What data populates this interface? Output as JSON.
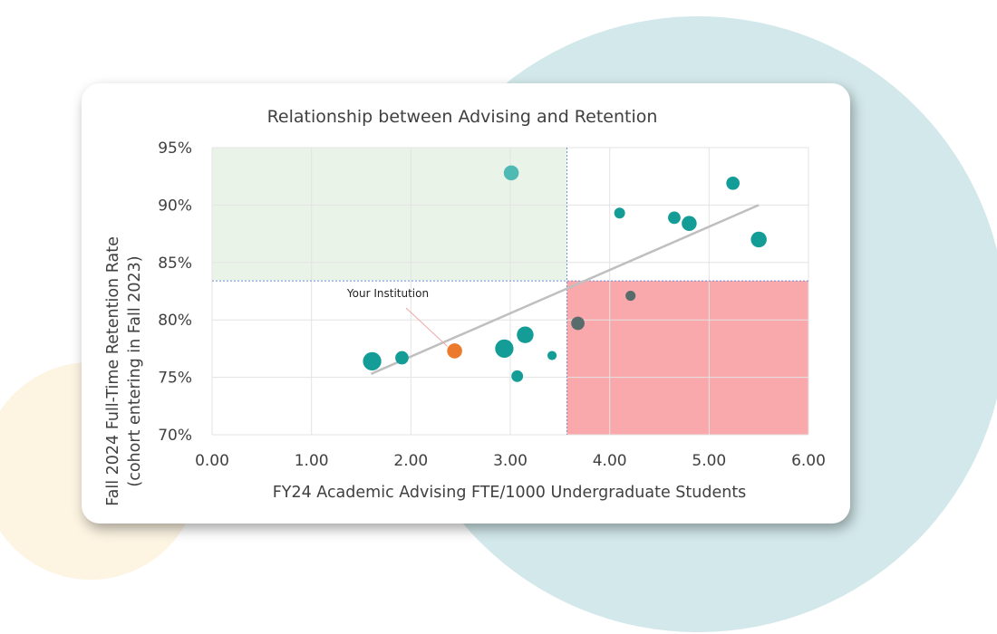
{
  "chart_data": {
    "type": "scatter",
    "title": "Relationship between Advising and Retention",
    "xlabel": "FY24 Academic Advising FTE/1000 Undergraduate Students",
    "ylabel_lines": [
      "Fall 2024 Full-Time Retention Rate",
      "(cohort entering in Fall 2023)"
    ],
    "xlim": [
      0,
      6
    ],
    "ylim": [
      70,
      95
    ],
    "x_ticks": [
      0,
      1,
      2,
      3,
      4,
      5,
      6
    ],
    "x_tick_labels": [
      "0.00",
      "1.00",
      "2.00",
      "3.00",
      "4.00",
      "5.00",
      "6.00"
    ],
    "y_ticks": [
      70,
      75,
      80,
      85,
      90,
      95
    ],
    "y_tick_labels": [
      "70%",
      "75%",
      "80%",
      "85%",
      "90%",
      "95%"
    ],
    "grid": true,
    "reference_lines": {
      "x": 3.57,
      "y": 83.4
    },
    "quadrants": [
      {
        "name": "low-advising-high-retention",
        "x": [
          0,
          3.57
        ],
        "y": [
          83.4,
          95
        ],
        "color": "#eaf3e8"
      },
      {
        "name": "high-advising-low-retention",
        "x": [
          3.57,
          6
        ],
        "y": [
          70,
          83.4
        ],
        "color": "#f9a8ab"
      }
    ],
    "trendline": {
      "x1": 1.6,
      "y1": 75.3,
      "x2": 5.5,
      "y2": 90.0,
      "color": "#bfbfbf"
    },
    "points": [
      {
        "x": 1.61,
        "y": 76.4,
        "size": 2.2,
        "color": "#149c97"
      },
      {
        "x": 1.91,
        "y": 76.7,
        "size": 1.6,
        "color": "#149c97"
      },
      {
        "x": 2.44,
        "y": 77.3,
        "size": 1.8,
        "color": "#ec7a2d",
        "label": "Your Institution"
      },
      {
        "x": 2.94,
        "y": 77.5,
        "size": 2.2,
        "color": "#149c97"
      },
      {
        "x": 3.15,
        "y": 78.7,
        "size": 2.0,
        "color": "#149c97"
      },
      {
        "x": 3.07,
        "y": 75.1,
        "size": 1.4,
        "color": "#149c97"
      },
      {
        "x": 3.42,
        "y": 76.9,
        "size": 1.1,
        "color": "#149c97"
      },
      {
        "x": 3.01,
        "y": 92.8,
        "size": 1.8,
        "color": "#4fb9b3"
      },
      {
        "x": 3.68,
        "y": 79.7,
        "size": 1.6,
        "color": "#596c6c"
      },
      {
        "x": 4.21,
        "y": 82.1,
        "size": 1.2,
        "color": "#596c6c"
      },
      {
        "x": 4.1,
        "y": 89.3,
        "size": 1.3,
        "color": "#149c97"
      },
      {
        "x": 4.65,
        "y": 88.9,
        "size": 1.5,
        "color": "#149c97"
      },
      {
        "x": 4.8,
        "y": 88.4,
        "size": 1.8,
        "color": "#149c97"
      },
      {
        "x": 5.24,
        "y": 91.9,
        "size": 1.6,
        "color": "#149c97"
      },
      {
        "x": 5.5,
        "y": 87.0,
        "size": 1.9,
        "color": "#149c97"
      }
    ],
    "annotation": {
      "text": "Your Institution",
      "target_x": 2.44,
      "target_y": 77.3
    }
  }
}
